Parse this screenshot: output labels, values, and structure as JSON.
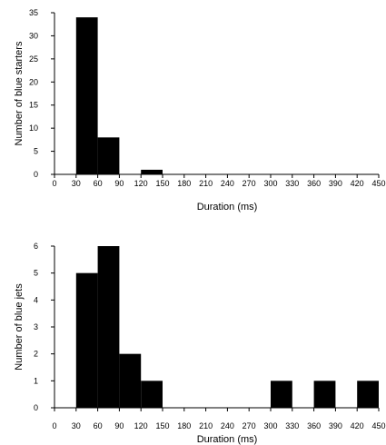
{
  "chart_data": [
    {
      "type": "bar",
      "bin_edges": [
        0,
        30,
        60,
        90,
        120,
        150,
        180,
        210,
        240,
        270,
        300,
        330,
        360,
        390,
        420,
        450
      ],
      "xticks": [
        "0",
        "30",
        "60",
        "90",
        "120",
        "150",
        "180",
        "210",
        "240",
        "270",
        "300",
        "330",
        "360",
        "390",
        "420",
        "450"
      ],
      "values": [
        0,
        34,
        8,
        0,
        1,
        0,
        0,
        0,
        0,
        0,
        0,
        0,
        0,
        0,
        0
      ],
      "xlabel": "Duration (ms)",
      "ylabel": "Number of blue starters",
      "xlim": [
        0,
        450
      ],
      "ylim": [
        0,
        35
      ],
      "yticks": [
        "0",
        "5",
        "10",
        "15",
        "20",
        "25",
        "30",
        "35"
      ],
      "ytick_values": [
        0,
        5,
        10,
        15,
        20,
        25,
        30,
        35
      ],
      "grid": false
    },
    {
      "type": "bar",
      "bin_edges": [
        0,
        30,
        60,
        90,
        120,
        150,
        180,
        210,
        240,
        270,
        300,
        330,
        360,
        390,
        420,
        450
      ],
      "xticks": [
        "0",
        "30",
        "60",
        "90",
        "120",
        "150",
        "180",
        "210",
        "240",
        "270",
        "300",
        "330",
        "360",
        "390",
        "420",
        "450"
      ],
      "values": [
        0,
        5,
        6,
        2,
        1,
        0,
        0,
        0,
        0,
        0,
        1,
        0,
        1,
        0,
        1
      ],
      "xlabel": "Duration (ms)",
      "ylabel": "Number of blue jets",
      "xlim": [
        0,
        450
      ],
      "ylim": [
        0,
        6
      ],
      "yticks": [
        "0",
        "1",
        "2",
        "3",
        "4",
        "5",
        "6"
      ],
      "ytick_values": [
        0,
        1,
        2,
        3,
        4,
        5,
        6
      ],
      "grid": false
    }
  ]
}
